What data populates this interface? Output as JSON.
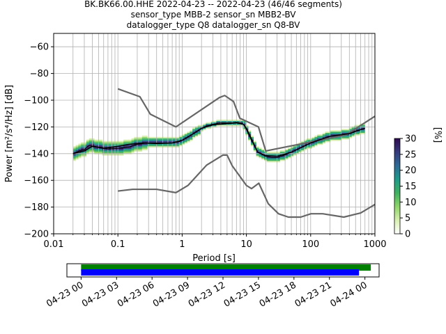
{
  "title_lines": [
    "BK.BK66.00.HHE   2022-04-23 -- 2022-04-23  (46/46 segments)",
    "sensor_type MBB-2 sensor_sn MBB2-BV",
    "datalogger_type Q8 datalogger_sn Q8-BV"
  ],
  "chart_data": [
    {
      "type": "heatmap",
      "xlabel": "Period [s]",
      "ylabel": "Power [m²/s⁴/Hz] [dB]",
      "x_scale": "log",
      "xlim": [
        0.01,
        1000
      ],
      "ylim": [
        -200,
        -50
      ],
      "x_ticks": [
        0.01,
        0.1,
        1,
        10,
        100,
        1000
      ],
      "x_tick_labels": [
        "0.01",
        "0.1",
        "1",
        "10",
        "100",
        "1000"
      ],
      "y_ticks": [
        -200,
        -180,
        -160,
        -140,
        -120,
        -100,
        -80,
        -60
      ],
      "y_tick_labels": [
        "−200",
        "−180",
        "−160",
        "−140",
        "−120",
        "−100",
        "−80",
        "−60"
      ],
      "grid": true,
      "colorbar": {
        "label": "[%]",
        "range": [
          0,
          30
        ],
        "ticks": [
          0,
          5,
          10,
          15,
          20,
          25,
          30
        ],
        "colormap": [
          "#ffffff",
          "#d8efb0",
          "#8fd56a",
          "#3fb160",
          "#1f9a8a",
          "#2e6a96",
          "#353a7c",
          "#2c0b4e"
        ]
      },
      "series": [
        {
          "name": "NHNM",
          "color": "#666666",
          "x": [
            0.1,
            0.22,
            0.32,
            0.8,
            3.8,
            4.6,
            6.3,
            7.9,
            15.4,
            20,
            354.8,
            1000
          ],
          "y": [
            -91.5,
            -97.4,
            -110.5,
            -120,
            -98,
            -96.5,
            -101,
            -113.5,
            -120,
            -138,
            -126,
            -112
          ]
        },
        {
          "name": "NLNM",
          "color": "#666666",
          "x": [
            0.1,
            0.17,
            0.4,
            0.8,
            1.24,
            2.4,
            4.3,
            5,
            6,
            10,
            12,
            15.6,
            21.9,
            31.6,
            45,
            70,
            101,
            154,
            328,
            600,
            1000
          ],
          "y": [
            -168,
            -166.7,
            -166.7,
            -169.2,
            -163.7,
            -148.6,
            -141.1,
            -141.1,
            -149,
            -163.8,
            -166.2,
            -162.1,
            -177.5,
            -185,
            -187.5,
            -187.5,
            -185,
            -185,
            -187.5,
            -184.4,
            -178
          ]
        },
        {
          "name": "mode",
          "color": "#000000",
          "x": [
            0.02,
            0.025,
            0.03,
            0.035,
            0.05,
            0.07,
            0.1,
            0.15,
            0.2,
            0.3,
            0.5,
            0.7,
            0.9,
            1.2,
            1.6,
            2.2,
            3,
            4,
            5,
            6,
            7,
            8,
            9,
            10,
            12,
            15,
            20,
            25,
            30,
            40,
            60,
            80,
            100,
            150,
            200,
            300,
            400,
            500,
            600,
            700
          ],
          "y": [
            -140,
            -138,
            -137,
            -134,
            -135,
            -136.5,
            -136,
            -135,
            -133,
            -132,
            -132,
            -132,
            -131,
            -128,
            -124,
            -120,
            -118,
            -117,
            -117,
            -117,
            -116.5,
            -117,
            -118,
            -122,
            -130,
            -139,
            -142,
            -143,
            -143,
            -141,
            -137,
            -134,
            -132,
            -129,
            -127,
            -126,
            -125,
            -123,
            -122,
            -121
          ]
        },
        {
          "name": "mean",
          "color": "#000000",
          "x": [
            0.02,
            0.03,
            0.04,
            0.06,
            0.1,
            0.15,
            0.25,
            0.4,
            0.7,
            1,
            1.5,
            2,
            3,
            5,
            7,
            9,
            10,
            12,
            15,
            20,
            30,
            50,
            100,
            200,
            400,
            600,
            700
          ],
          "y": [
            -140,
            -138,
            -134.5,
            -136,
            -134.5,
            -133,
            -132,
            -132.5,
            -132,
            -130,
            -125,
            -121,
            -118.5,
            -117.5,
            -117,
            -118,
            -121,
            -129,
            -139,
            -141.5,
            -142,
            -139,
            -132,
            -127,
            -125,
            -122,
            -121
          ]
        }
      ],
      "coverage_panel": {
        "x_tick_labels": [
          "04-23 00",
          "04-23 03",
          "04-23 06",
          "04-23 09",
          "04-23 12",
          "04-23 15",
          "04-23 18",
          "04-23 21",
          "04-24 00"
        ],
        "x_ticks_hours": [
          0,
          3,
          6,
          9,
          12,
          15,
          18,
          21,
          24
        ],
        "xlim_hours": [
          -1.2,
          25.2
        ],
        "bars": [
          {
            "name": "data",
            "color": "#008000",
            "start_hour": 0,
            "end_hour": 24.5
          },
          {
            "name": "used",
            "color": "#0000ff",
            "start_hour": 0,
            "end_hour": 23.5
          }
        ]
      }
    }
  ]
}
